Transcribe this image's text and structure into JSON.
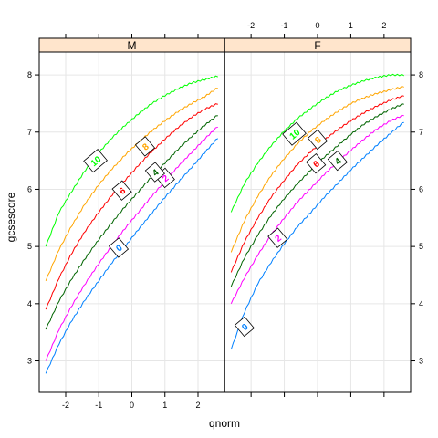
{
  "chart_data": {
    "type": "line",
    "xlabel": "qnorm",
    "ylabel": "gcsescore",
    "xlim": [
      -2.8,
      2.8
    ],
    "ylim": [
      2.45,
      8.4
    ],
    "x_ticks": [
      -2,
      -1,
      0,
      1,
      2
    ],
    "y_ticks": [
      3,
      4,
      5,
      6,
      7,
      8
    ],
    "grid": true,
    "panels": [
      {
        "strip": "M",
        "series": [
          {
            "name": "0",
            "color": "#0080ff",
            "x": [
              -2.6,
              -2.2,
              -1.8,
              -1.4,
              -1.0,
              -0.6,
              -0.2,
              0.2,
              0.6,
              1.0,
              1.4,
              1.8,
              2.2,
              2.6
            ],
            "y": [
              2.78,
              3.3,
              3.72,
              4.08,
              4.4,
              4.72,
              5.0,
              5.3,
              5.58,
              5.86,
              6.12,
              6.38,
              6.64,
              6.9
            ],
            "label_at": [
              -0.4,
              4.98
            ]
          },
          {
            "name": "2",
            "color": "#ff00ff",
            "x": [
              -2.6,
              -2.2,
              -1.8,
              -1.4,
              -1.0,
              -0.6,
              -0.2,
              0.2,
              0.6,
              1.0,
              1.4,
              1.8,
              2.2,
              2.6
            ],
            "y": [
              3.0,
              3.55,
              3.98,
              4.36,
              4.7,
              5.02,
              5.32,
              5.6,
              5.88,
              6.14,
              6.4,
              6.64,
              6.88,
              7.1
            ],
            "label_at": [
              1.0,
              6.2
            ]
          },
          {
            "name": "4",
            "color": "#006400",
            "x": [
              -2.6,
              -2.2,
              -1.8,
              -1.4,
              -1.0,
              -0.6,
              -0.2,
              0.2,
              0.6,
              1.0,
              1.4,
              1.8,
              2.2,
              2.6
            ],
            "y": [
              3.55,
              4.05,
              4.45,
              4.8,
              5.12,
              5.42,
              5.7,
              5.96,
              6.22,
              6.46,
              6.7,
              6.92,
              7.12,
              7.3
            ],
            "label_at": [
              0.7,
              6.3
            ]
          },
          {
            "name": "6",
            "color": "#ff0000",
            "x": [
              -2.6,
              -2.2,
              -1.8,
              -1.4,
              -1.0,
              -0.6,
              -0.2,
              0.2,
              0.6,
              1.0,
              1.4,
              1.8,
              2.2,
              2.6
            ],
            "y": [
              3.9,
              4.45,
              4.9,
              5.28,
              5.6,
              5.9,
              6.16,
              6.42,
              6.66,
              6.88,
              7.08,
              7.26,
              7.4,
              7.5
            ],
            "label_at": [
              -0.3,
              5.98
            ]
          },
          {
            "name": "8",
            "color": "#ffa500",
            "x": [
              -2.6,
              -2.2,
              -1.8,
              -1.4,
              -1.0,
              -0.6,
              -0.2,
              0.2,
              0.6,
              1.0,
              1.4,
              1.8,
              2.2,
              2.6
            ],
            "y": [
              4.4,
              4.95,
              5.38,
              5.76,
              6.08,
              6.36,
              6.6,
              6.82,
              7.02,
              7.2,
              7.36,
              7.5,
              7.62,
              7.78
            ],
            "label_at": [
              0.4,
              6.75
            ]
          },
          {
            "name": "10",
            "color": "#00ff00",
            "x": [
              -2.6,
              -2.2,
              -1.8,
              -1.4,
              -1.0,
              -0.6,
              -0.2,
              0.2,
              0.6,
              1.0,
              1.4,
              1.8,
              2.2,
              2.6
            ],
            "y": [
              5.0,
              5.6,
              5.98,
              6.34,
              6.64,
              6.9,
              7.12,
              7.32,
              7.5,
              7.64,
              7.76,
              7.86,
              7.92,
              7.98
            ],
            "label_at": [
              -1.1,
              6.5
            ]
          }
        ]
      },
      {
        "strip": "F",
        "series": [
          {
            "name": "0",
            "color": "#0080ff",
            "x": [
              -2.6,
              -2.2,
              -1.8,
              -1.4,
              -1.0,
              -0.6,
              -0.2,
              0.2,
              0.6,
              1.0,
              1.4,
              1.8,
              2.2,
              2.6
            ],
            "y": [
              3.2,
              3.85,
              4.35,
              4.72,
              5.05,
              5.35,
              5.6,
              5.86,
              6.1,
              6.34,
              6.56,
              6.78,
              6.98,
              7.18
            ],
            "label_at": [
              -2.2,
              3.6
            ]
          },
          {
            "name": "2",
            "color": "#ff00ff",
            "x": [
              -2.6,
              -2.2,
              -1.8,
              -1.4,
              -1.0,
              -0.6,
              -0.2,
              0.2,
              0.6,
              1.0,
              1.4,
              1.8,
              2.2,
              2.6
            ],
            "y": [
              4.0,
              4.45,
              4.85,
              5.2,
              5.5,
              5.78,
              6.02,
              6.26,
              6.48,
              6.68,
              6.88,
              7.06,
              7.2,
              7.3
            ],
            "label_at": [
              -1.2,
              5.15
            ]
          },
          {
            "name": "4",
            "color": "#006400",
            "x": [
              -2.6,
              -2.2,
              -1.8,
              -1.4,
              -1.0,
              -0.6,
              -0.2,
              0.2,
              0.6,
              1.0,
              1.4,
              1.8,
              2.2,
              2.6
            ],
            "y": [
              4.3,
              4.8,
              5.2,
              5.54,
              5.84,
              6.1,
              6.34,
              6.56,
              6.76,
              6.96,
              7.14,
              7.28,
              7.4,
              7.5
            ],
            "label_at": [
              0.6,
              6.5
            ]
          },
          {
            "name": "6",
            "color": "#ff0000",
            "x": [
              -2.6,
              -2.2,
              -1.8,
              -1.4,
              -1.0,
              -0.6,
              -0.2,
              0.2,
              0.6,
              1.0,
              1.4,
              1.8,
              2.2,
              2.6
            ],
            "y": [
              4.55,
              5.08,
              5.5,
              5.86,
              6.16,
              6.44,
              6.66,
              6.86,
              7.04,
              7.2,
              7.34,
              7.46,
              7.56,
              7.64
            ],
            "label_at": [
              -0.05,
              6.45
            ]
          },
          {
            "name": "8",
            "color": "#ffa500",
            "x": [
              -2.6,
              -2.2,
              -1.8,
              -1.4,
              -1.0,
              -0.6,
              -0.2,
              0.2,
              0.6,
              1.0,
              1.4,
              1.8,
              2.2,
              2.6
            ],
            "y": [
              4.9,
              5.45,
              5.88,
              6.24,
              6.54,
              6.8,
              7.02,
              7.2,
              7.36,
              7.5,
              7.6,
              7.68,
              7.74,
              7.8
            ],
            "label_at": [
              0.0,
              6.87
            ]
          },
          {
            "name": "10",
            "color": "#00ff00",
            "x": [
              -2.6,
              -2.2,
              -1.8,
              -1.4,
              -1.0,
              -0.6,
              -0.2,
              0.2,
              0.6,
              1.0,
              1.4,
              1.8,
              2.2,
              2.6
            ],
            "y": [
              5.6,
              6.1,
              6.46,
              6.76,
              7.02,
              7.24,
              7.42,
              7.58,
              7.72,
              7.82,
              7.9,
              7.96,
              8.0,
              8.0
            ],
            "label_at": [
              -0.7,
              6.97
            ]
          }
        ]
      }
    ]
  }
}
